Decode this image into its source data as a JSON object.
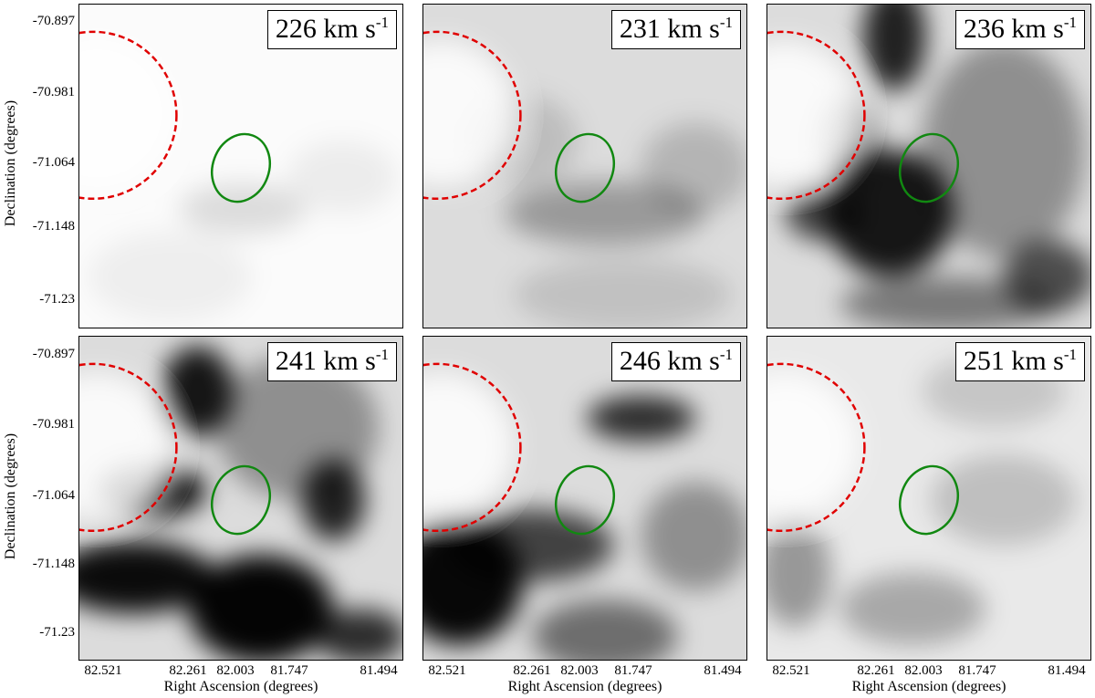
{
  "panels": [
    {
      "label_num": "226",
      "unit": "km s",
      "exp": "-1"
    },
    {
      "label_num": "231",
      "unit": "km s",
      "exp": "-1"
    },
    {
      "label_num": "236",
      "unit": "km s",
      "exp": "-1"
    },
    {
      "label_num": "241",
      "unit": "km s",
      "exp": "-1"
    },
    {
      "label_num": "246",
      "unit": "km s",
      "exp": "-1"
    },
    {
      "label_num": "251",
      "unit": "km s",
      "exp": "-1"
    }
  ],
  "axes": {
    "ylabel": "Declination (degrees)",
    "xlabel": "Right Ascension (degrees)",
    "yticks": [
      "-70.897",
      "-70.981",
      "-71.064",
      "-71.148",
      "-71.23"
    ],
    "xticks": [
      "82.521",
      "82.261",
      "82.003",
      "81.747",
      "81.494"
    ]
  },
  "colors": {
    "red_circle": "#e00000",
    "green_ellipse": "#118811"
  }
}
